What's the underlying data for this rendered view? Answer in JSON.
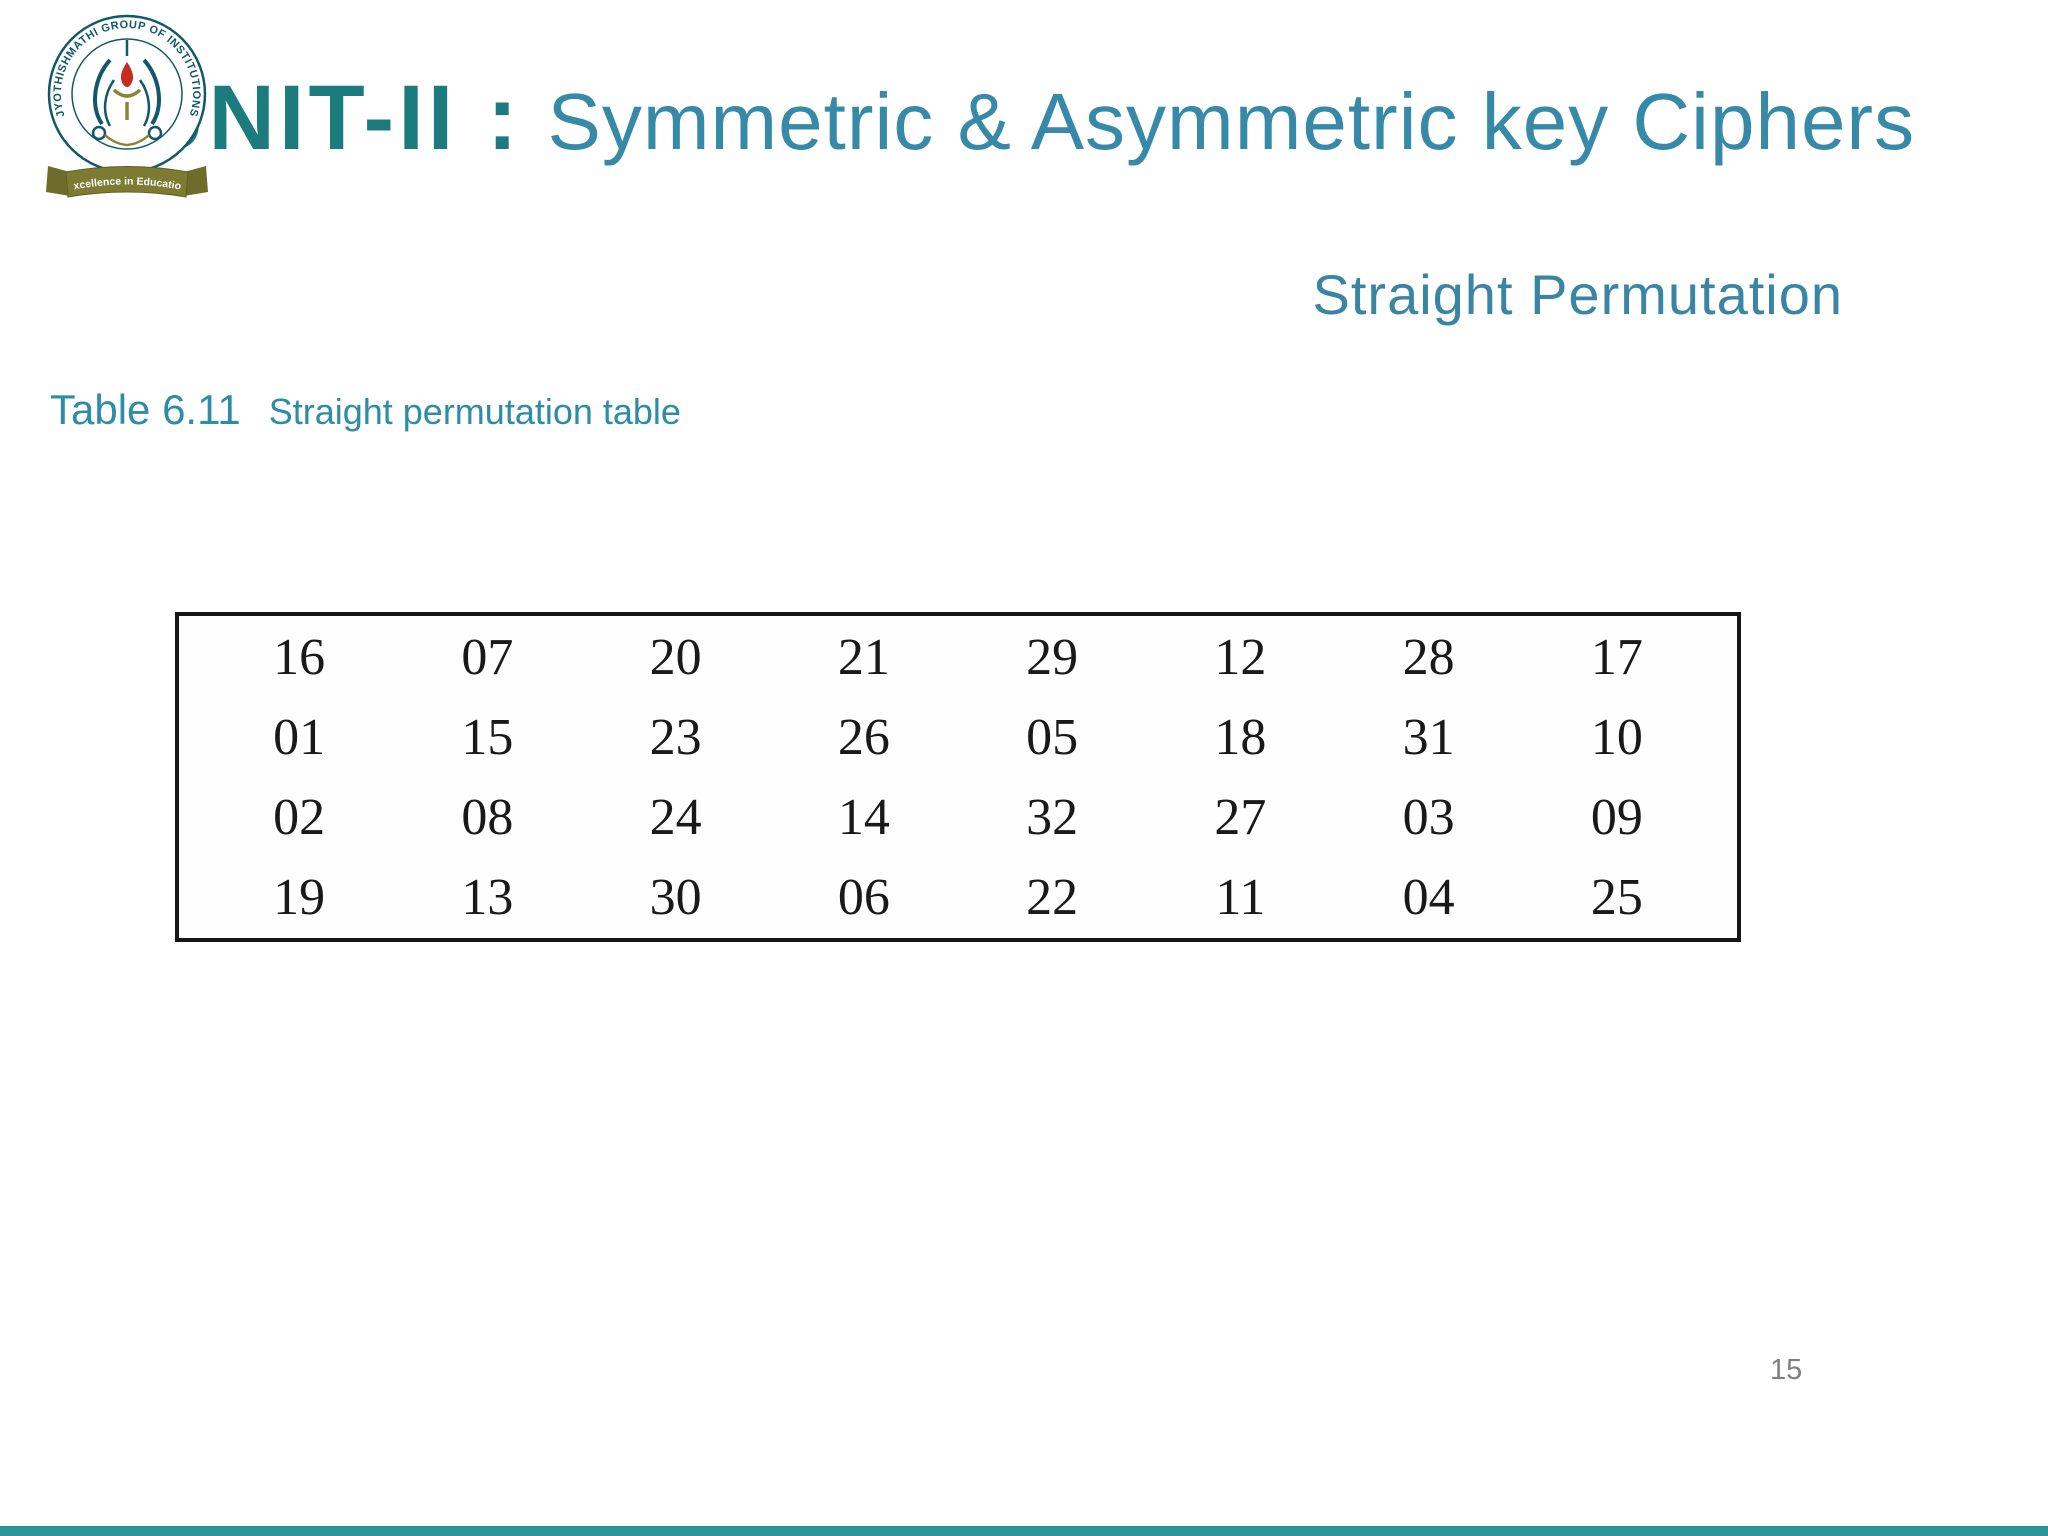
{
  "slide": {
    "logo": {
      "ring_text": "JYOTHISHMATHI GROUP OF INSTITUTIONS",
      "banner_text": "Excellence in Education"
    },
    "title": {
      "prefix": "UNIT-II :",
      "main": "Symmetric & Asymmetric key Ciphers"
    },
    "subtitle": "Straight Permutation",
    "caption": {
      "label": "Table 6.11",
      "text": "Straight permutation table"
    },
    "page_number": "15",
    "colors": {
      "title_prefix": "#1b7b7d",
      "title_main": "#3789a8",
      "subtitle": "#3a84a4",
      "caption": "#2e8ca6",
      "table_text": "#191919",
      "table_border": "#161616",
      "page_number": "#7f7f7f",
      "footer_bar": "#2a9496",
      "logo_teal": "#13576b",
      "logo_olive": "#7c7a33",
      "logo_flame": "#c52c22"
    }
  },
  "table": {
    "rows": [
      [
        "16",
        "07",
        "20",
        "21",
        "29",
        "12",
        "28",
        "17"
      ],
      [
        "01",
        "15",
        "23",
        "26",
        "05",
        "18",
        "31",
        "10"
      ],
      [
        "02",
        "08",
        "24",
        "14",
        "32",
        "27",
        "03",
        "09"
      ],
      [
        "19",
        "13",
        "30",
        "06",
        "22",
        "11",
        "04",
        "25"
      ]
    ]
  }
}
